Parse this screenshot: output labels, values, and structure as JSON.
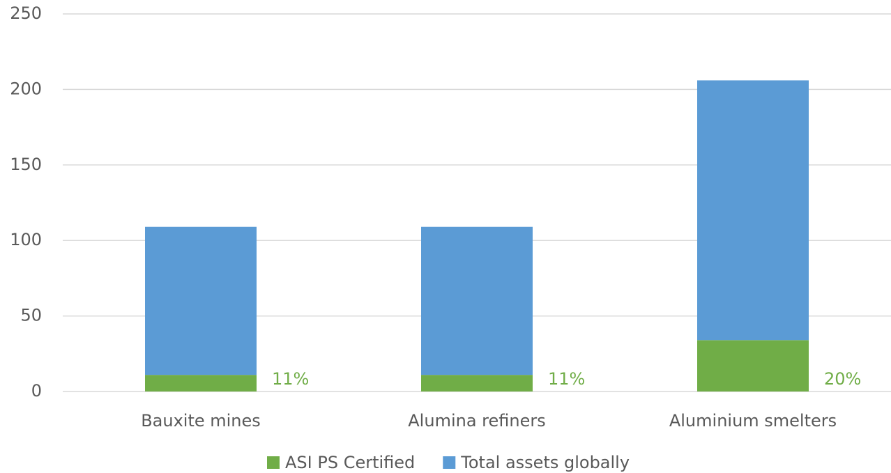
{
  "chart_data": {
    "type": "stacked_bar",
    "categories": [
      "Bauxite mines",
      "Alumina refiners",
      "Aluminium smelters"
    ],
    "series": [
      {
        "name": "ASI PS Certified",
        "color": "#70ad47",
        "values": [
          11,
          11,
          34
        ]
      },
      {
        "name": "Total assets globally",
        "color": "#5b9bd5",
        "values": [
          98,
          98,
          172
        ]
      }
    ],
    "annotations": [
      "11%",
      "11%",
      "20%"
    ],
    "annotation_color": "#70ad47",
    "ylim": [
      0,
      250
    ],
    "yticks": [
      0,
      50,
      100,
      150,
      200,
      250
    ],
    "grid": true
  }
}
